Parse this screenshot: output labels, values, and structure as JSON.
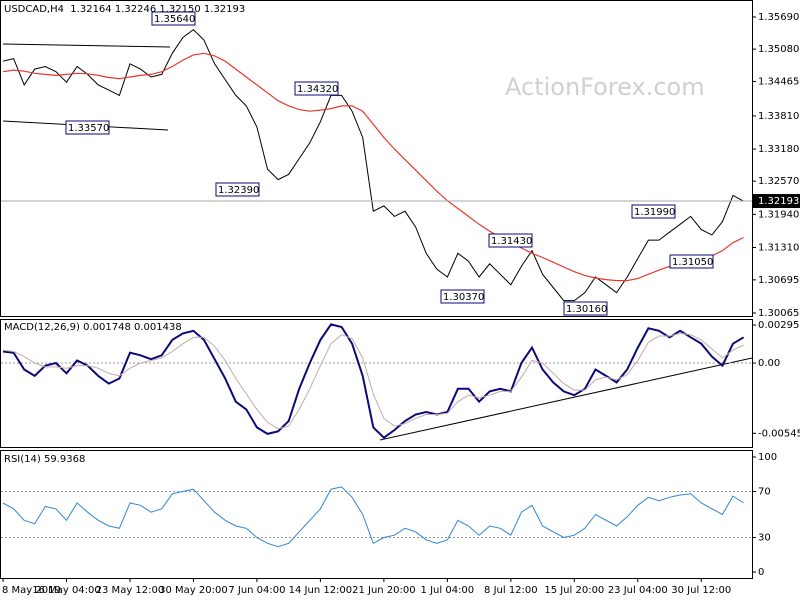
{
  "chart_data": [
    {
      "type": "line",
      "title": "USDCAD,H4  1.32164 1.32246 1.32150 1.32193",
      "watermark": "ActionForex.com",
      "categories": [
        "8 May 2019",
        null,
        null,
        null,
        null,
        null,
        "16 May 04:00",
        null,
        null,
        null,
        null,
        null,
        "23 May 12:00",
        null,
        null,
        null,
        null,
        null,
        "30 May 20:00",
        null,
        null,
        null,
        null,
        null,
        "7 Jun 04:00",
        null,
        null,
        null,
        null,
        null,
        "14 Jun 12:00",
        null,
        null,
        null,
        null,
        null,
        "21 Jun 20:00",
        null,
        null,
        null,
        null,
        null,
        "1 Jul 04:00",
        null,
        null,
        null,
        null,
        null,
        "8 Jul 12:00",
        null,
        null,
        null,
        null,
        null,
        "15 Jul 20:00",
        null,
        null,
        null,
        null,
        null,
        "23 Jul 04:00",
        null,
        null,
        null,
        null,
        null,
        "30 Jul 12:00",
        null,
        null,
        null,
        null
      ],
      "series": [
        {
          "color": "#000000",
          "values": [
            1.3485,
            1.349,
            1.344,
            1.347,
            1.3475,
            1.3465,
            1.3445,
            1.3475,
            1.346,
            1.344,
            1.343,
            1.342,
            1.348,
            1.347,
            1.3455,
            1.346,
            1.35,
            1.353,
            1.3545,
            1.3525,
            1.348,
            1.345,
            1.342,
            1.34,
            1.336,
            1.328,
            1.326,
            1.327,
            1.33,
            1.333,
            1.337,
            1.342,
            1.342,
            1.339,
            1.334,
            1.32,
            1.321,
            1.319,
            1.32,
            1.317,
            1.312,
            1.309,
            1.3075,
            1.312,
            1.3105,
            1.3075,
            1.31,
            1.308,
            1.306,
            1.3095,
            1.3125,
            1.308,
            1.3055,
            1.303,
            1.303,
            1.3045,
            1.3075,
            1.306,
            1.3045,
            1.3075,
            1.311,
            1.3145,
            1.3145,
            1.316,
            1.3175,
            1.319,
            1.3165,
            1.3155,
            1.318,
            1.323,
            1.3219
          ]
        },
        {
          "color": "#e8382f",
          "values": [
            1.3465,
            1.3468,
            1.3466,
            1.3462,
            1.346,
            1.3458,
            1.346,
            1.3462,
            1.3461,
            1.3458,
            1.3454,
            1.3452,
            1.3455,
            1.3458,
            1.346,
            1.3465,
            1.3475,
            1.3487,
            1.3497,
            1.35,
            1.3495,
            1.3485,
            1.347,
            1.3455,
            1.344,
            1.3425,
            1.341,
            1.34,
            1.3393,
            1.339,
            1.3392,
            1.3395,
            1.34,
            1.34,
            1.339,
            1.3365,
            1.334,
            1.3318,
            1.3298,
            1.3278,
            1.3258,
            1.3238,
            1.322,
            1.3205,
            1.319,
            1.3175,
            1.3162,
            1.315,
            1.314,
            1.313,
            1.312,
            1.3112,
            1.3103,
            1.3094,
            1.3085,
            1.3078,
            1.3073,
            1.307,
            1.3068,
            1.3068,
            1.3072,
            1.308,
            1.3088,
            1.3095,
            1.3102,
            1.3108,
            1.3112,
            1.3115,
            1.3125,
            1.314,
            1.315
          ]
        }
      ],
      "last_value": 1.32193,
      "annotations": [
        "1.35640",
        "1.34320",
        "1.33570",
        "1.32390",
        "1.31430",
        "1.31990",
        "1.31050",
        "1.30370",
        "1.30160"
      ],
      "ylim": [
        1.30008,
        1.36013
      ],
      "yticks": [
        {
          "value": 1.3569,
          "label": "1.35690"
        },
        {
          "value": 1.3508,
          "label": "1.35080"
        },
        1.34465,
        {
          "value": 1.3381,
          "label": "1.33810"
        },
        {
          "value": 1.3318,
          "label": "1.33180"
        },
        {
          "value": 1.3257,
          "label": "1.32570"
        },
        {
          "value": 1.3194,
          "label": "1.31940"
        },
        {
          "value": 1.3131,
          "label": "1.31310"
        },
        1.30695,
        1.30065
      ]
    },
    {
      "type": "line",
      "title": "MACD(12,26,9) 0.001748 0.001438",
      "series": [
        {
          "color": "#0a0a78",
          "values": [
            0.0009,
            0.0008,
            -0.0005,
            -0.001,
            -0.0002,
            0,
            -0.0008,
            0.0002,
            -0.0002,
            -0.001,
            -0.0016,
            -0.0012,
            0.0008,
            0.0006,
            0.0003,
            0.0006,
            0.0018,
            0.0023,
            0.0025,
            0.0018,
            0.0003,
            -0.0012,
            -0.003,
            -0.0036,
            -0.005,
            -0.0055,
            -0.0053,
            -0.0045,
            -0.002,
            0,
            0.0018,
            0.003,
            0.0028,
            0.0015,
            -0.001,
            -0.005,
            -0.0058,
            -0.0052,
            -0.0045,
            -0.004,
            -0.0038,
            -0.004,
            -0.0038,
            -0.002,
            -0.002,
            -0.003,
            -0.0022,
            -0.002,
            -0.0022,
            0,
            0.0012,
            -0.0005,
            -0.0015,
            -0.0022,
            -0.0025,
            -0.002,
            -0.0005,
            -0.001,
            -0.0015,
            -0.0005,
            0.0012,
            0.0027,
            0.0025,
            0.002,
            0.0025,
            0.002,
            0.0015,
            0.0005,
            -0.0002,
            0.0015,
            0.002
          ]
        },
        {
          "color": "#c8a8a8",
          "values": [
            0.001,
            0.0009,
            0.0005,
            0,
            -0.0003,
            -0.0003,
            -0.0004,
            -0.0002,
            -0.0002,
            -0.0004,
            -0.0008,
            -0.001,
            -0.0004,
            0,
            0.0002,
            0.0004,
            0.0009,
            0.0015,
            0.002,
            0.002,
            0.0013,
            0.0002,
            -0.0012,
            -0.0024,
            -0.0036,
            -0.0046,
            -0.0051,
            -0.0049,
            -0.0036,
            -0.002,
            -0.0002,
            0.0015,
            0.0022,
            0.0019,
            0.0004,
            -0.0024,
            -0.0043,
            -0.0049,
            -0.0047,
            -0.0043,
            -0.004,
            -0.004,
            -0.0039,
            -0.003,
            -0.0025,
            -0.0027,
            -0.0025,
            -0.0022,
            -0.0022,
            -0.0011,
            0.0002,
            0,
            -0.0008,
            -0.0016,
            -0.0021,
            -0.0021,
            -0.0013,
            -0.0011,
            -0.0013,
            -0.0009,
            0.0002,
            0.0016,
            0.0021,
            0.0021,
            0.0023,
            0.0022,
            0.0018,
            0.0011,
            0.0004,
            0.001,
            0.0014
          ]
        }
      ],
      "levels": [
        0
      ],
      "ylim": [
        -0.00652,
        0.00342
      ],
      "yticks": [
        0.00295,
        {
          "value": 0,
          "label": "0.00"
        },
        -0.005455
      ]
    },
    {
      "type": "line",
      "title": "RSI(14) 59.9368",
      "series": [
        {
          "color": "#2f86d6",
          "values": [
            60,
            55,
            45,
            42,
            57,
            55,
            45,
            60,
            52,
            45,
            40,
            38,
            60,
            58,
            52,
            55,
            68,
            70,
            72,
            62,
            52,
            45,
            40,
            38,
            30,
            25,
            22,
            25,
            35,
            45,
            55,
            72,
            74,
            65,
            50,
            25,
            30,
            32,
            38,
            35,
            28,
            25,
            28,
            45,
            40,
            32,
            40,
            38,
            32,
            52,
            58,
            40,
            35,
            30,
            32,
            38,
            50,
            45,
            40,
            48,
            58,
            65,
            62,
            65,
            67,
            68,
            60,
            55,
            50,
            66,
            60
          ]
        }
      ],
      "levels": [
        70,
        30
      ],
      "ylim": [
        -5.2,
        106.1
      ],
      "yticks": [
        100,
        70,
        30,
        0
      ]
    }
  ]
}
